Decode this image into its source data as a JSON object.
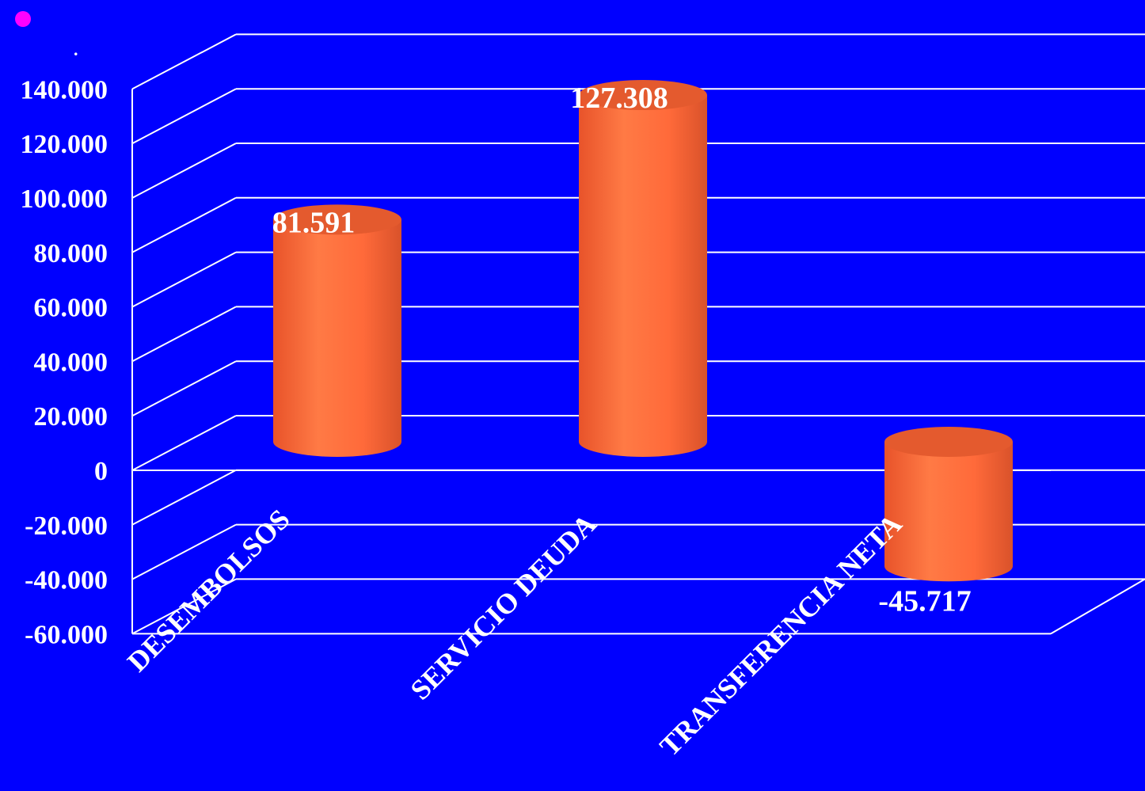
{
  "slide": {
    "bullet_color": "#FF00FF",
    "dot_text": "."
  },
  "chart_data": {
    "type": "bar",
    "style": "3d-cylinder",
    "categories": [
      "DESEMBOLSOS",
      "SERVICIO DEUDA",
      "TRANSFERENCIA NETA"
    ],
    "values": [
      81.591,
      127.308,
      -45.717
    ],
    "data_labels": [
      "81.591",
      "127.308",
      "-45.717"
    ],
    "y_tick_labels": [
      "-60.000",
      "-40.000",
      "-20.000",
      "0",
      "20.000",
      "40.000",
      "60.000",
      "80.000",
      "100.000",
      "120.000",
      "140.000"
    ],
    "y_ticks": [
      -60,
      -40,
      -20,
      0,
      20,
      40,
      60,
      80,
      100,
      120,
      140
    ],
    "ylim": [
      -60,
      140
    ],
    "grid": true,
    "legend": "none",
    "colors": {
      "background": "#0000FF",
      "bar": "#FF6A3A",
      "bar_shadow": "#C94A22",
      "bar_top": "#E45A2E",
      "gridline": "#FFFFFF",
      "text": "#FFFFFF"
    }
  }
}
